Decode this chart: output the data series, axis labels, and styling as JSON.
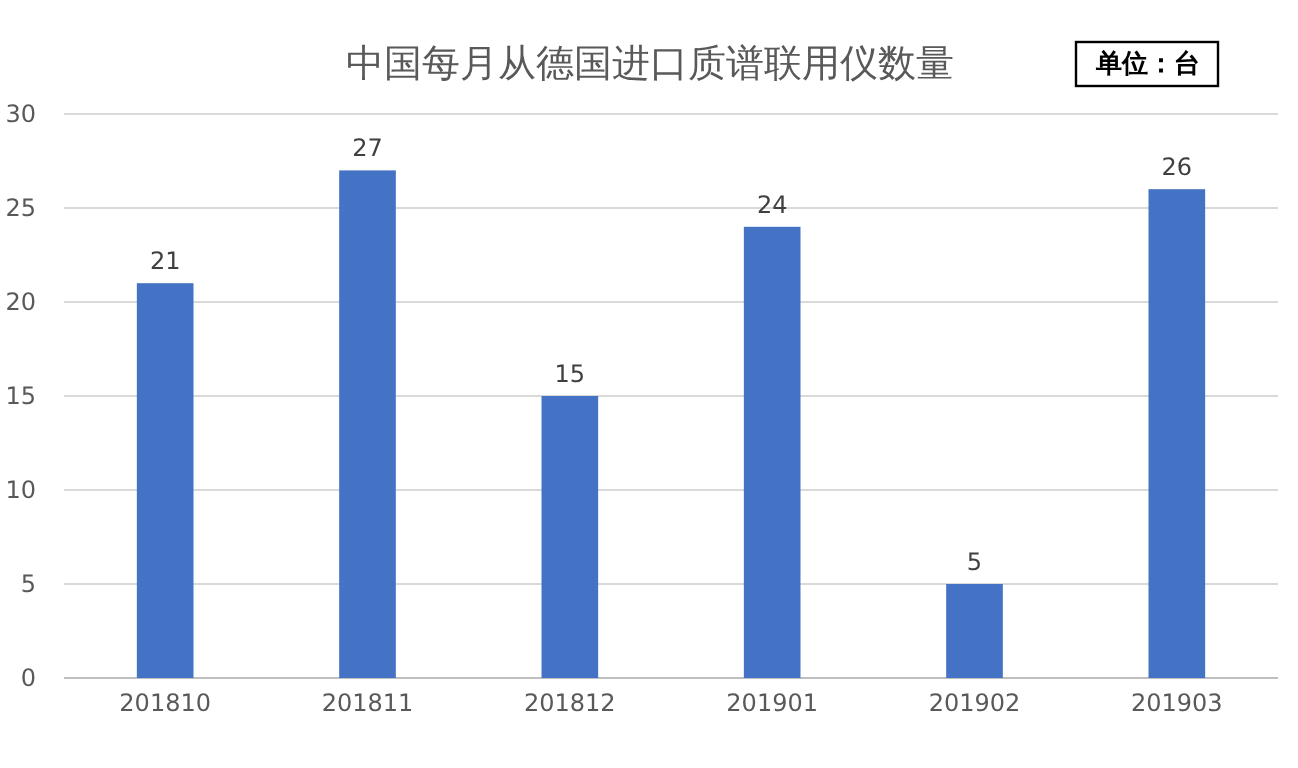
{
  "chart_data": {
    "type": "bar",
    "title": "中国每月从德国进口质谱联用仪数量",
    "annotations": [
      "单位：台"
    ],
    "categories": [
      "201810",
      "201811",
      "201812",
      "201901",
      "201902",
      "201903"
    ],
    "values": [
      21,
      27,
      15,
      24,
      5,
      26
    ],
    "color": "#4472c4",
    "ylim": [
      0,
      30
    ],
    "yticks": [
      0,
      5,
      10,
      15,
      20,
      25,
      30
    ],
    "grid": "y",
    "data_labels": true
  }
}
